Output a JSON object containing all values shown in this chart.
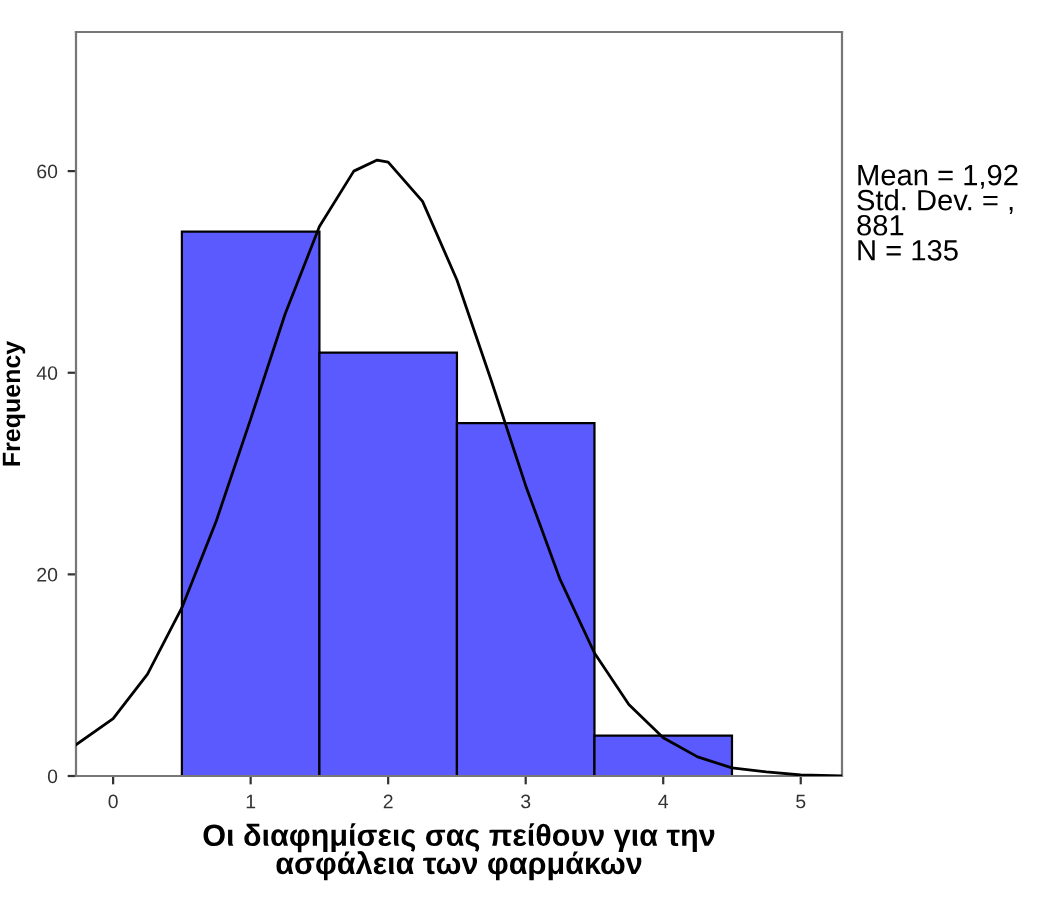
{
  "chart_data": {
    "type": "histogram",
    "xlabel": "Οι διαφημίσεις σας πείθουν για την\nασφάλεια των φαρμάκων",
    "ylabel": "Frequency",
    "bins": [
      0.5,
      1.5,
      2.5,
      3.5,
      4.5
    ],
    "values": [
      54,
      42,
      35,
      4
    ],
    "color": "#5a5aff",
    "series": [
      {
        "type": "line",
        "color": "#000000",
        "x": [
          -0.27,
          0,
          0.25,
          0.5,
          0.75,
          1.0,
          1.25,
          1.5,
          1.75,
          1.92,
          2.0,
          2.25,
          2.5,
          2.75,
          3.0,
          3.25,
          3.5,
          3.75,
          4.0,
          4.25,
          4.5,
          4.75,
          5.0,
          5.3
        ],
        "values": [
          3.1,
          5.7,
          10.1,
          16.7,
          25.3,
          35.4,
          45.8,
          54.5,
          60.0,
          61.1,
          60.9,
          57.0,
          49.2,
          39.2,
          28.8,
          19.5,
          12.2,
          7.1,
          3.8,
          1.9,
          0.8,
          0.4,
          0.1,
          0.0
        ]
      }
    ],
    "annotations": [
      "Mean = 1,92\nStd. Dev. = ,\n881\nN = 135"
    ],
    "xlim": [
      -0.27,
      5.3
    ],
    "ylim": [
      0,
      73.8
    ],
    "xticks": [
      0,
      1,
      2,
      3,
      4,
      5
    ],
    "yticks": [
      0,
      20,
      40,
      60
    ],
    "grid": false,
    "legend": false
  }
}
